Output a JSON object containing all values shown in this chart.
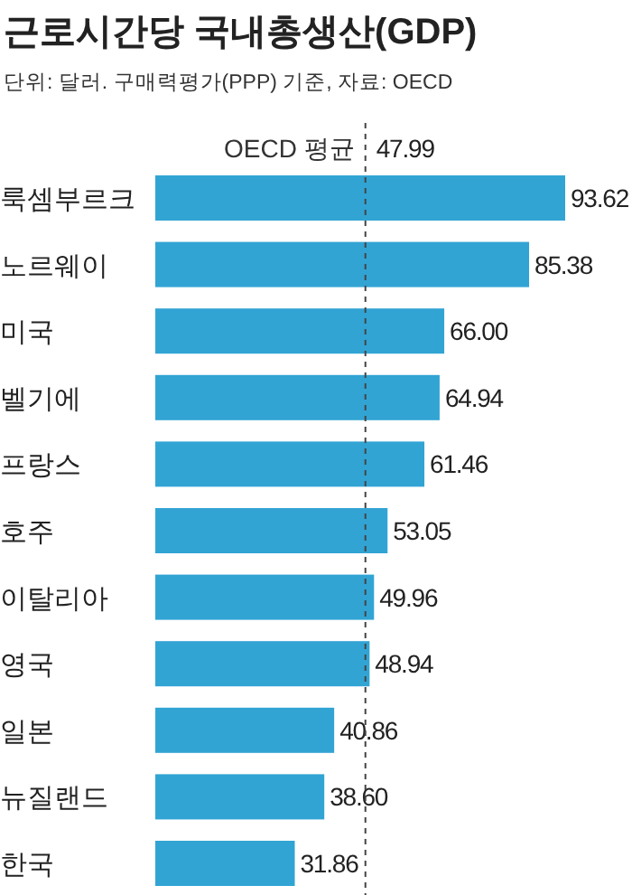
{
  "chart_data": {
    "type": "bar",
    "orientation": "horizontal",
    "title": "근로시간당 국내총생산(GDP)",
    "subtitle": "단위: 달러. 구매력평가(PPP) 기준, 자료: OECD",
    "categories": [
      "룩셈부르크",
      "노르웨이",
      "미국",
      "벨기에",
      "프랑스",
      "호주",
      "이탈리아",
      "영국",
      "일본",
      "뉴질랜드",
      "한국"
    ],
    "values": [
      93.62,
      85.38,
      66.0,
      64.94,
      61.46,
      53.05,
      49.96,
      48.94,
      40.86,
      38.6,
      31.86
    ],
    "value_labels": [
      "93.62",
      "85.38",
      "66.00",
      "64.94",
      "61.46",
      "53.05",
      "49.96",
      "48.94",
      "40.86",
      "38.60",
      "31.86"
    ],
    "color": "#31a4d4",
    "ref_lines": [
      {
        "axis": "x",
        "value": 47.99,
        "label": "OECD 평균",
        "color": "#444444",
        "line_style": "dashed"
      }
    ],
    "annotations": [
      {
        "text": "47.99",
        "x": 47.99
      }
    ]
  }
}
